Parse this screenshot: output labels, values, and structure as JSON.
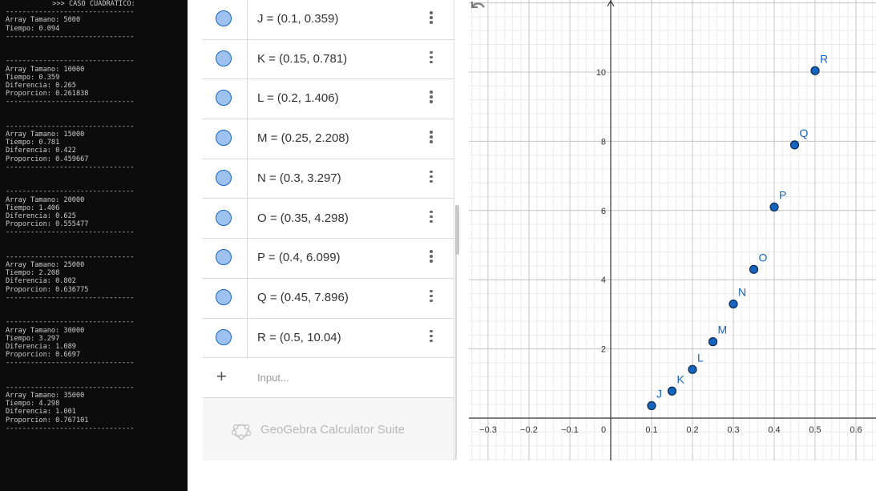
{
  "console": {
    "lines": [
      ">>> CASO CUADRATICO:",
      "-------------------------------",
      "Array Tamano: 5000",
      "Tiempo: 0.094",
      "-------------------------------",
      "",
      "",
      "-------------------------------",
      "Array Tamano: 10000",
      "Tiempo: 0.359",
      "Diferencia: 0.265",
      "Proporcion: 0.261838",
      "-------------------------------",
      "",
      "",
      "-------------------------------",
      "Array Tamano: 15000",
      "Tiempo: 0.781",
      "Diferencia: 0.422",
      "Proporcion: 0.459667",
      "-------------------------------",
      "",
      "",
      "-------------------------------",
      "Array Tamano: 20000",
      "Tiempo: 1.406",
      "Diferencia: 0.625",
      "Proporcion: 0.555477",
      "-------------------------------",
      "",
      "",
      "-------------------------------",
      "Array Tamano: 25000",
      "Tiempo: 2.208",
      "Diferencia: 0.802",
      "Proporcion: 0.636775",
      "-------------------------------",
      "",
      "",
      "-------------------------------",
      "Array Tamano: 30000",
      "Tiempo: 3.297",
      "Diferencia: 1.089",
      "Proporcion: 0.6697",
      "-------------------------------",
      "",
      "",
      "-------------------------------",
      "Array Tamano: 35000",
      "Tiempo: 4.298",
      "Diferencia: 1.001",
      "Proporcion: 0.767101",
      "-------------------------------"
    ]
  },
  "algebra": {
    "items": [
      {
        "name": "J",
        "text": "J = (0.1, 0.359)"
      },
      {
        "name": "K",
        "text": "K = (0.15, 0.781)"
      },
      {
        "name": "L",
        "text": "L = (0.2, 1.406)"
      },
      {
        "name": "M",
        "text": "M = (0.25, 2.208)"
      },
      {
        "name": "N",
        "text": "N = (0.3, 3.297)"
      },
      {
        "name": "O",
        "text": "O = (0.35, 4.298)"
      },
      {
        "name": "P",
        "text": "P = (0.4, 6.099)"
      },
      {
        "name": "Q",
        "text": "Q = (0.45, 7.896)"
      },
      {
        "name": "R",
        "text": "R = (0.5, 10.04)"
      }
    ],
    "input_placeholder": "Input...",
    "brand": "GeoGebra Calculator Suite"
  },
  "graph": {
    "x_ticks": [
      "−0.3",
      "−0.2",
      "−0.1",
      "0",
      "0.1",
      "0.2",
      "0.3",
      "0.4",
      "0.5",
      "0.6"
    ],
    "y_ticks": [
      "2",
      "4",
      "6",
      "8",
      "10"
    ],
    "point_color": "#1565c0",
    "label_color": "#1565c0"
  },
  "chart_data": {
    "type": "scatter",
    "points": [
      {
        "label": "J",
        "x": 0.1,
        "y": 0.359
      },
      {
        "label": "K",
        "x": 0.15,
        "y": 0.781
      },
      {
        "label": "L",
        "x": 0.2,
        "y": 1.406
      },
      {
        "label": "M",
        "x": 0.25,
        "y": 2.208
      },
      {
        "label": "N",
        "x": 0.3,
        "y": 3.297
      },
      {
        "label": "O",
        "x": 0.35,
        "y": 4.298
      },
      {
        "label": "P",
        "x": 0.4,
        "y": 6.099
      },
      {
        "label": "Q",
        "x": 0.45,
        "y": 7.896
      },
      {
        "label": "R",
        "x": 0.5,
        "y": 10.04
      }
    ],
    "xlim": [
      -0.35,
      0.64
    ],
    "ylim": [
      -1.0,
      12.2
    ],
    "grid": true
  }
}
